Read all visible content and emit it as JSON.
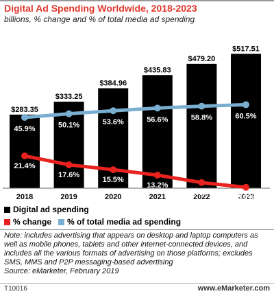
{
  "chart_data": {
    "type": "bar",
    "title": "Digital Ad Spending Worldwide, 2018-2023",
    "subtitle": "billions, % change and % of total media ad spending",
    "categories": [
      "2018",
      "2019",
      "2020",
      "2021",
      "2022",
      "2023"
    ],
    "series": [
      {
        "name": "Digital ad spending",
        "type": "bar",
        "color": "#000000",
        "values": [
          283.35,
          333.25,
          384.96,
          435.83,
          479.2,
          517.51
        ],
        "labels": [
          "$283.35",
          "$333.25",
          "$384.96",
          "$435.83",
          "$479.20",
          "$517.51"
        ]
      },
      {
        "name": "% change",
        "type": "line",
        "color": "#e8231f",
        "values": [
          21.4,
          17.6,
          15.5,
          13.2,
          10.0,
          8.0
        ],
        "labels": [
          "21.4%",
          "17.6%",
          "15.5%",
          "13.2%",
          "10.0%",
          "8.0%"
        ]
      },
      {
        "name": "% of total media ad spending",
        "type": "line",
        "color": "#7aaed0",
        "values": [
          45.9,
          50.1,
          53.6,
          56.6,
          58.8,
          60.5
        ],
        "labels": [
          "45.9%",
          "50.1%",
          "53.6%",
          "56.6%",
          "58.8%",
          "60.5%"
        ]
      }
    ],
    "legend": {
      "position": "bottom",
      "items": [
        "Digital ad spending",
        "% change",
        "% of total media ad spending"
      ]
    }
  },
  "note": "Note: includes advertising that appears on desktop and laptop computers as well as mobile phones, tablets and other internet-connected devices, and includes all the various formats of advertising on those platforms; excludes SMS, MMS and P2P messaging-based advertising",
  "source": "Source: eMarketer, February 2019",
  "chart_id": "T10016",
  "brand": "www.eMarketer.com"
}
